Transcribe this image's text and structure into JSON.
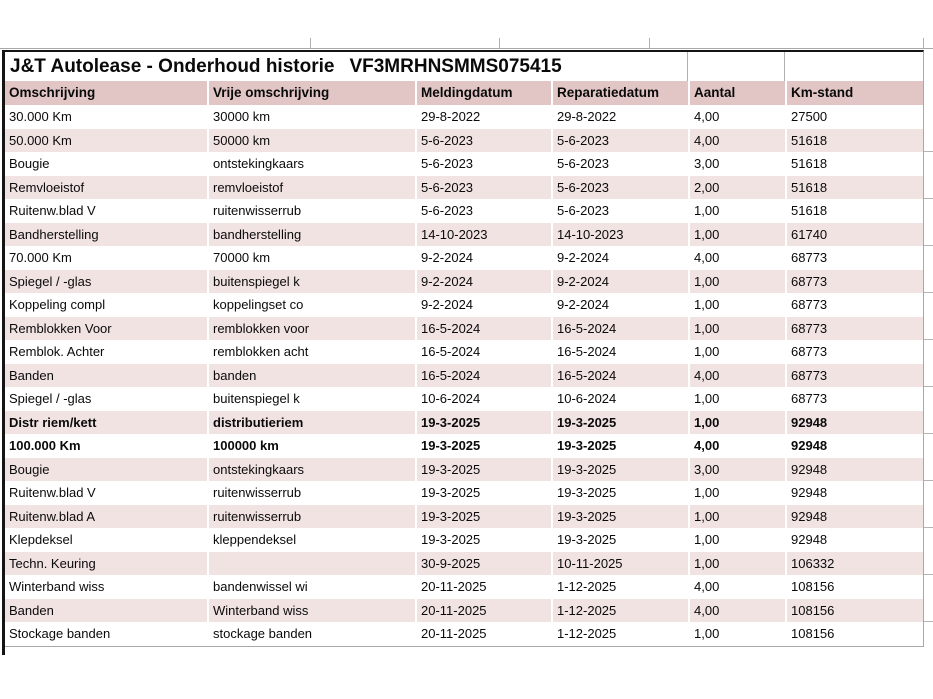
{
  "report": {
    "title": "J&T Autolease - Onderhoud historie",
    "vin": "VF3MRHNSMMS075415"
  },
  "table": {
    "columns": [
      "Omschrijving",
      "Vrije omschrijving",
      "Meldingdatum",
      "Reparatiedatum",
      "Aantal",
      "Km-stand"
    ],
    "column_keys": [
      "omschrijving",
      "vrije-omschrijving",
      "meldingdatum",
      "reparatiedatum",
      "aantal",
      "km-stand"
    ],
    "rows": [
      {
        "cells": [
          "30.000 Km",
          "30000 km",
          "29-8-2022",
          "29-8-2022",
          "4,00",
          "27500"
        ],
        "bold": false
      },
      {
        "cells": [
          "50.000 Km",
          "50000 km",
          "5-6-2023",
          "5-6-2023",
          "4,00",
          "51618"
        ],
        "bold": false
      },
      {
        "cells": [
          "Bougie",
          "ontstekingkaars",
          "5-6-2023",
          "5-6-2023",
          "3,00",
          "51618"
        ],
        "bold": false
      },
      {
        "cells": [
          "Remvloeistof",
          "remvloeistof",
          "5-6-2023",
          "5-6-2023",
          "2,00",
          "51618"
        ],
        "bold": false
      },
      {
        "cells": [
          "Ruitenw.blad V",
          "ruitenwisserrub",
          "5-6-2023",
          "5-6-2023",
          "1,00",
          "51618"
        ],
        "bold": false
      },
      {
        "cells": [
          "Bandherstelling",
          "bandherstelling",
          "14-10-2023",
          "14-10-2023",
          "1,00",
          "61740"
        ],
        "bold": false
      },
      {
        "cells": [
          "70.000 Km",
          "70000 km",
          "9-2-2024",
          "9-2-2024",
          "4,00",
          "68773"
        ],
        "bold": false
      },
      {
        "cells": [
          "Spiegel / -glas",
          "buitenspiegel k",
          "9-2-2024",
          "9-2-2024",
          "1,00",
          "68773"
        ],
        "bold": false
      },
      {
        "cells": [
          "Koppeling compl",
          "koppelingset co",
          "9-2-2024",
          "9-2-2024",
          "1,00",
          "68773"
        ],
        "bold": false
      },
      {
        "cells": [
          "Remblokken Voor",
          "remblokken voor",
          "16-5-2024",
          "16-5-2024",
          "1,00",
          "68773"
        ],
        "bold": false
      },
      {
        "cells": [
          "Remblok. Achter",
          "remblokken acht",
          "16-5-2024",
          "16-5-2024",
          "1,00",
          "68773"
        ],
        "bold": false
      },
      {
        "cells": [
          "Banden",
          "banden",
          "16-5-2024",
          "16-5-2024",
          "4,00",
          "68773"
        ],
        "bold": false
      },
      {
        "cells": [
          "Spiegel / -glas",
          "buitenspiegel k",
          "10-6-2024",
          "10-6-2024",
          "1,00",
          "68773"
        ],
        "bold": false
      },
      {
        "cells": [
          "Distr riem/kett",
          "distributieriem",
          "19-3-2025",
          "19-3-2025",
          "1,00",
          "92948"
        ],
        "bold": true
      },
      {
        "cells": [
          "100.000 Km",
          "100000 km",
          "19-3-2025",
          "19-3-2025",
          "4,00",
          "92948"
        ],
        "bold": true
      },
      {
        "cells": [
          "Bougie",
          "ontstekingkaars",
          "19-3-2025",
          "19-3-2025",
          "3,00",
          "92948"
        ],
        "bold": false
      },
      {
        "cells": [
          "Ruitenw.blad V",
          "ruitenwisserrub",
          "19-3-2025",
          "19-3-2025",
          "1,00",
          "92948"
        ],
        "bold": false
      },
      {
        "cells": [
          "Ruitenw.blad A",
          "ruitenwisserrub",
          "19-3-2025",
          "19-3-2025",
          "1,00",
          "92948"
        ],
        "bold": false
      },
      {
        "cells": [
          "Klepdeksel",
          "kleppendeksel",
          "19-3-2025",
          "19-3-2025",
          "1,00",
          "92948"
        ],
        "bold": false
      },
      {
        "cells": [
          "Techn. Keuring",
          "",
          "30-9-2025",
          "10-11-2025",
          "1,00",
          "106332"
        ],
        "bold": false
      },
      {
        "cells": [
          "Winterband wiss",
          "bandenwissel wi",
          "20-11-2025",
          "1-12-2025",
          "4,00",
          "108156"
        ],
        "bold": false
      },
      {
        "cells": [
          "Banden",
          "Winterband wiss",
          "20-11-2025",
          "1-12-2025",
          "4,00",
          "108156"
        ],
        "bold": false
      },
      {
        "cells": [
          "Stockage banden",
          "stockage banden",
          "20-11-2025",
          "1-12-2025",
          "1,00",
          "108156"
        ],
        "bold": false
      }
    ]
  },
  "colors": {
    "header_bg": "#e2c6c6",
    "stripe_bg": "#f2e3e3",
    "row_bg": "#ffffff",
    "outer_border": "#141414",
    "gridline": "#a8a8a8"
  }
}
